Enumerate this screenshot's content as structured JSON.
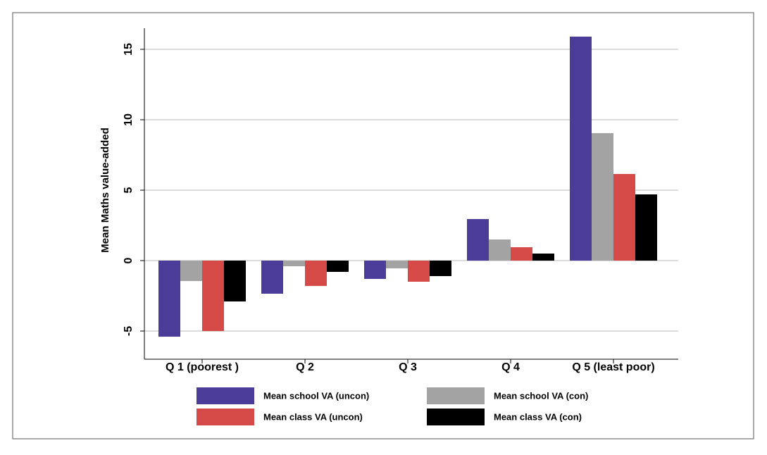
{
  "chart_data": {
    "type": "bar",
    "y_label": "Mean Maths value-added",
    "categories": [
      "Q 1 (poorest  )",
      "Q 2",
      "Q 3",
      "Q 4",
      "Q 5 (least poor)"
    ],
    "series": [
      {
        "name": "Mean school VA (uncon)",
        "color": "#4b3c9a",
        "values": [
          -5.4,
          -2.35,
          -1.3,
          2.95,
          15.9
        ]
      },
      {
        "name": "Mean school VA (con)",
        "color": "#a3a3a3",
        "values": [
          -1.45,
          -0.4,
          -0.55,
          1.5,
          9.05
        ]
      },
      {
        "name": "Mean class VA (uncon)",
        "color": "#d54a47",
        "values": [
          -5.0,
          -1.8,
          -1.5,
          0.95,
          6.15
        ]
      },
      {
        "name": "Mean class VA (con)",
        "color": "#000000",
        "values": [
          -2.9,
          -0.8,
          -1.1,
          0.5,
          4.7
        ]
      }
    ],
    "ylim": [
      -6.5,
      16.5
    ],
    "yticks": [
      -5,
      0,
      5,
      10,
      15
    ],
    "grid": true
  }
}
